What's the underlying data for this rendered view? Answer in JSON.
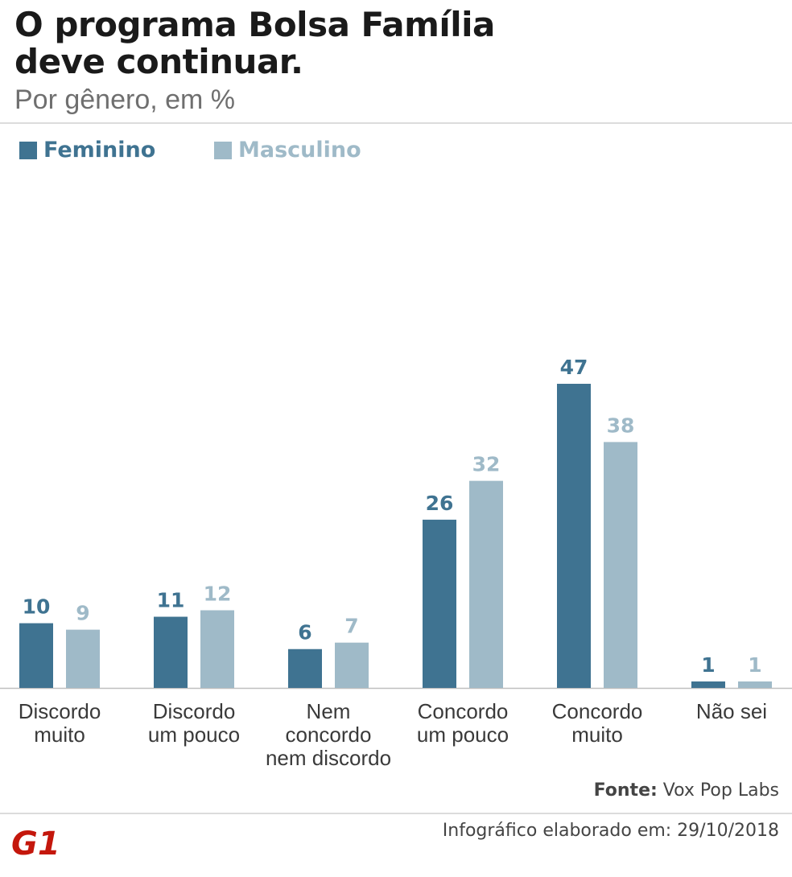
{
  "title_line1": "O programa Bolsa Família",
  "title_line2": "deve continuar.",
  "subtitle": "Por gênero, em %",
  "source_label": "Fonte:",
  "source_value": " Vox Pop Labs",
  "credit": "Infográfico elaborado em: 29/10/2018",
  "logo_text": "G1",
  "colors": {
    "feminino": "#3f7391",
    "masculino": "#9fbac8",
    "logo": "#c4170c"
  },
  "chart_data": {
    "type": "bar",
    "title": "O programa Bolsa Família deve continuar.",
    "subtitle": "Por gênero, em %",
    "categories": [
      "Discordo muito",
      "Discordo um pouco",
      "Nem concordo nem discordo",
      "Concordo um pouco",
      "Concordo muito",
      "Não sei"
    ],
    "category_labels": [
      "Discordo\nmuito",
      "Discordo\num pouco",
      "Nem\nconcordo\nnem discordo",
      "Concordo\num pouco",
      "Concordo\nmuito",
      "Não sei"
    ],
    "series": [
      {
        "name": "Feminino",
        "values": [
          10,
          11,
          6,
          26,
          47,
          1
        ]
      },
      {
        "name": "Masculino",
        "values": [
          9,
          12,
          7,
          32,
          38,
          1
        ]
      }
    ],
    "ylim": [
      0,
      47
    ],
    "legend": "top-left",
    "grid": false
  }
}
